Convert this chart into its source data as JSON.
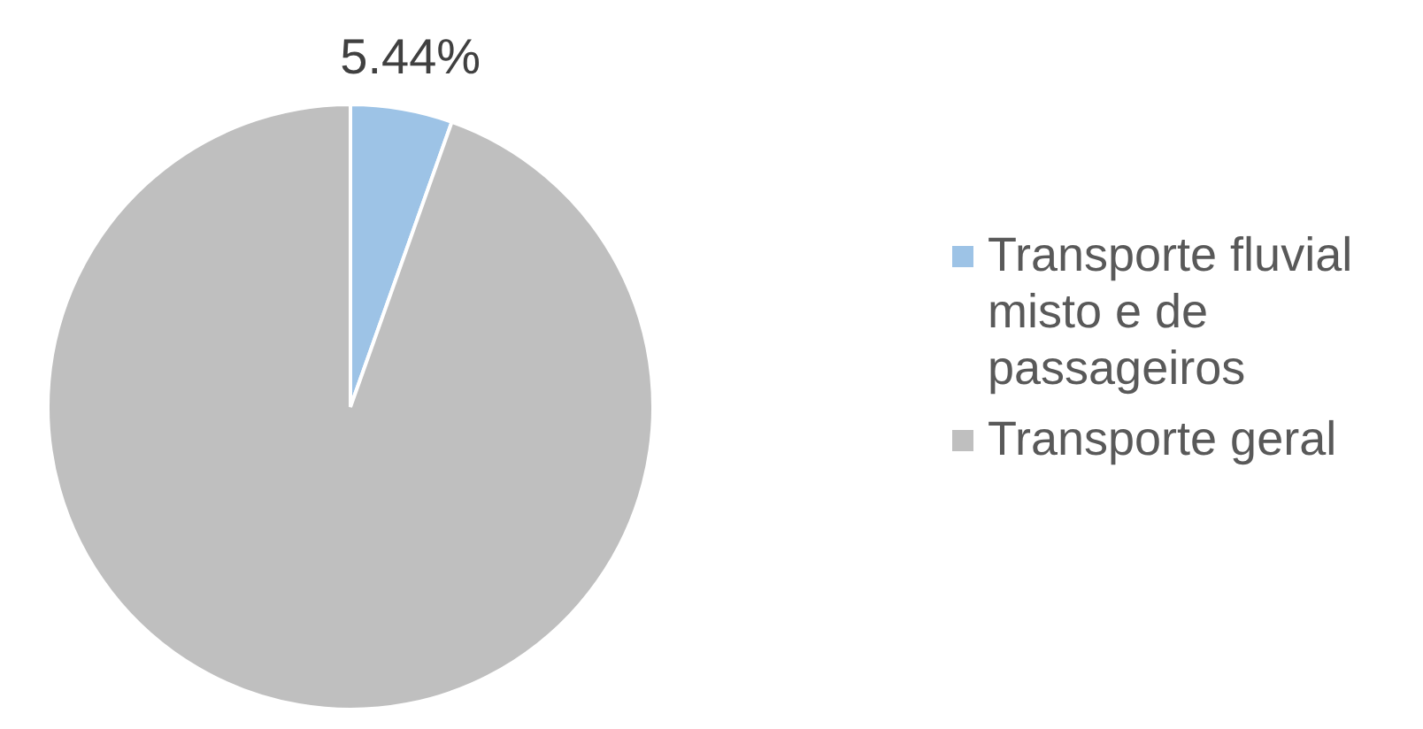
{
  "chart_data": {
    "type": "pie",
    "categories": [
      "Transporte fluvial misto e de passageiros",
      "Transporte geral"
    ],
    "values": [
      5.44,
      94.56
    ],
    "colors": [
      "#9dc3e6",
      "#bfbfbf"
    ],
    "value_labels": [
      "5.44%",
      null
    ],
    "legend": "right"
  }
}
